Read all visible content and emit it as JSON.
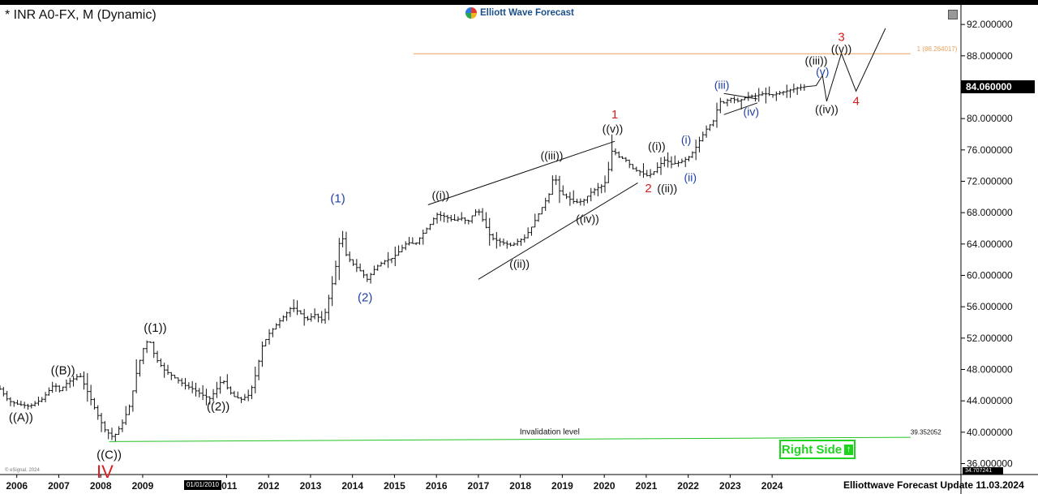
{
  "header": {
    "title": "* INR A0-FX, M (Dynamic)",
    "brand": "Elliott Wave Forecast",
    "footer": "Elliottwave Forecast Update 11.03.2024",
    "copyright": "© eSignal, 2024",
    "x_cursor_date": "01/01/2010",
    "right_side_label": "Right Side"
  },
  "colors": {
    "candle": "#111111",
    "fib_line": "#e8a25c",
    "invalidation_line": "#22c322",
    "label_black": "#111111",
    "label_blue": "#1f3fa6",
    "label_red": "#d81e1e",
    "accent_green": "#1fd41f"
  },
  "chart_data": {
    "type": "ohlc",
    "symbol": "INR A0-FX",
    "timeframe": "M",
    "x_range": [
      2005.6,
      2028.5
    ],
    "ylim": [
      34.707241,
      94.5
    ],
    "y_ticks": [
      "92.000000",
      "88.000000",
      "84.000000",
      "80.000000",
      "76.000000",
      "72.000000",
      "68.000000",
      "64.000000",
      "60.000000",
      "56.000000",
      "52.000000",
      "48.000000",
      "44.000000",
      "40.000000",
      "36.000000"
    ],
    "y_tick_values": [
      92,
      88,
      84,
      80,
      76,
      72,
      68,
      64,
      60,
      56,
      52,
      48,
      44,
      40,
      36
    ],
    "x_ticks": [
      "2006",
      "2007",
      "2008",
      "2009",
      "2011",
      "2012",
      "2013",
      "2014",
      "2015",
      "2016",
      "2017",
      "2018",
      "2019",
      "2020",
      "2021",
      "2022",
      "2023",
      "2024"
    ],
    "x_tick_values": [
      2006,
      2007,
      2008,
      2009,
      2011,
      2012,
      2013,
      2014,
      2015,
      2016,
      2017,
      2018,
      2019,
      2020,
      2021,
      2022,
      2023,
      2024
    ],
    "last_price": "84.060000",
    "low_price": "34.707241",
    "price_path": [
      [
        2005.6,
        45.5
      ],
      [
        2005.8,
        44.0
      ],
      [
        2006.0,
        43.6
      ],
      [
        2006.3,
        43.3
      ],
      [
        2006.6,
        44.2
      ],
      [
        2006.9,
        46.2
      ],
      [
        2007.0,
        45.2
      ],
      [
        2007.2,
        46.3
      ],
      [
        2007.5,
        47.3
      ],
      [
        2007.7,
        45.0
      ],
      [
        2007.9,
        42.5
      ],
      [
        2008.1,
        40.3
      ],
      [
        2008.3,
        39.3
      ],
      [
        2008.5,
        41.0
      ],
      [
        2008.7,
        43.5
      ],
      [
        2008.85,
        47.5
      ],
      [
        2009.0,
        50.5
      ],
      [
        2009.15,
        52.0
      ],
      [
        2009.3,
        49.5
      ],
      [
        2009.5,
        48.0
      ],
      [
        2009.7,
        47.2
      ],
      [
        2009.85,
        46.6
      ],
      [
        2010.0,
        46.0
      ],
      [
        2010.2,
        45.5
      ],
      [
        2010.4,
        44.8
      ],
      [
        2010.6,
        44.3
      ],
      [
        2010.75,
        45.4
      ],
      [
        2010.9,
        46.8
      ],
      [
        2011.0,
        45.8
      ],
      [
        2011.15,
        44.6
      ],
      [
        2011.35,
        44.2
      ],
      [
        2011.55,
        44.8
      ],
      [
        2011.7,
        47.5
      ],
      [
        2011.85,
        51.0
      ],
      [
        2012.0,
        52.5
      ],
      [
        2012.2,
        53.8
      ],
      [
        2012.4,
        55.0
      ],
      [
        2012.55,
        56.0
      ],
      [
        2012.75,
        55.2
      ],
      [
        2012.9,
        54.3
      ],
      [
        2013.1,
        55.0
      ],
      [
        2013.3,
        54.2
      ],
      [
        2013.5,
        58.5
      ],
      [
        2013.67,
        63.0
      ],
      [
        2013.72,
        67.0
      ],
      [
        2013.8,
        63.0
      ],
      [
        2014.0,
        61.5
      ],
      [
        2014.2,
        60.5
      ],
      [
        2014.35,
        59.5
      ],
      [
        2014.55,
        61.0
      ],
      [
        2014.75,
        61.8
      ],
      [
        2014.95,
        62.2
      ],
      [
        2015.1,
        63.0
      ],
      [
        2015.3,
        64.2
      ],
      [
        2015.5,
        64.0
      ],
      [
        2015.7,
        65.5
      ],
      [
        2015.85,
        66.5
      ],
      [
        2016.0,
        67.8
      ],
      [
        2016.2,
        67.5
      ],
      [
        2016.4,
        67.0
      ],
      [
        2016.6,
        67.3
      ],
      [
        2016.75,
        66.8
      ],
      [
        2016.9,
        68.0
      ],
      [
        2017.0,
        68.3
      ],
      [
        2017.15,
        66.5
      ],
      [
        2017.3,
        64.8
      ],
      [
        2017.55,
        64.2
      ],
      [
        2017.8,
        63.8
      ],
      [
        2017.95,
        64.4
      ],
      [
        2018.1,
        64.8
      ],
      [
        2018.25,
        66.0
      ],
      [
        2018.4,
        67.5
      ],
      [
        2018.55,
        69.0
      ],
      [
        2018.7,
        70.5
      ],
      [
        2018.8,
        73.0
      ],
      [
        2018.95,
        70.5
      ],
      [
        2019.1,
        70.0
      ],
      [
        2019.3,
        69.3
      ],
      [
        2019.5,
        69.5
      ],
      [
        2019.7,
        70.7
      ],
      [
        2019.85,
        71.2
      ],
      [
        2020.0,
        71.5
      ],
      [
        2020.15,
        74.5
      ],
      [
        2020.2,
        76.5
      ],
      [
        2020.3,
        75.2
      ],
      [
        2020.5,
        74.8
      ],
      [
        2020.7,
        73.5
      ],
      [
        2020.85,
        73.2
      ],
      [
        2021.0,
        72.7
      ],
      [
        2021.15,
        73.0
      ],
      [
        2021.3,
        74.0
      ],
      [
        2021.45,
        74.8
      ],
      [
        2021.6,
        74.2
      ],
      [
        2021.8,
        74.4
      ],
      [
        2022.0,
        75.0
      ],
      [
        2022.15,
        76.0
      ],
      [
        2022.3,
        77.5
      ],
      [
        2022.45,
        78.8
      ],
      [
        2022.6,
        79.7
      ],
      [
        2022.75,
        82.2
      ],
      [
        2022.85,
        82.0
      ],
      [
        2023.0,
        82.6
      ],
      [
        2023.2,
        82.2
      ],
      [
        2023.4,
        82.8
      ],
      [
        2023.6,
        82.9
      ],
      [
        2023.8,
        83.2
      ],
      [
        2024.0,
        83.0
      ],
      [
        2024.2,
        83.3
      ],
      [
        2024.4,
        83.6
      ],
      [
        2024.6,
        83.9
      ],
      [
        2024.8,
        84.06
      ]
    ],
    "projection_path": [
      [
        2025.05,
        84.2
      ],
      [
        2025.2,
        85.5
      ],
      [
        2025.3,
        82.2
      ],
      [
        2025.65,
        88.3
      ],
      [
        2026.0,
        83.5
      ],
      [
        2026.7,
        91.5
      ]
    ],
    "lines": [
      {
        "name": "fib-extension-line",
        "kind": "horizontal",
        "y": 88.264017,
        "x0": 2015.45,
        "x1": 2027.3,
        "color": "#e8a25c"
      },
      {
        "name": "invalidation-line",
        "kind": "segment",
        "y0": 38.8,
        "y1": 39.352052,
        "x0": 2008.2,
        "x1": 2027.3,
        "color": "#22c322"
      },
      {
        "name": "channel-upper-line",
        "kind": "segment",
        "x0": 2015.8,
        "y0": 69.0,
        "x1": 2020.25,
        "y1": 77.1,
        "color": "#111111"
      },
      {
        "name": "channel-lower-line",
        "kind": "segment",
        "x0": 2017.0,
        "y0": 59.5,
        "x1": 2020.8,
        "y1": 71.8,
        "color": "#111111"
      },
      {
        "name": "triangle-upper-line",
        "kind": "segment",
        "x0": 2022.85,
        "y0": 83.2,
        "x1": 2023.65,
        "y1": 82.5,
        "color": "#111111"
      },
      {
        "name": "triangle-lower-line",
        "kind": "segment",
        "x0": 2022.85,
        "y0": 80.5,
        "x1": 2023.65,
        "y1": 82.0,
        "color": "#111111"
      }
    ],
    "annotations": [
      {
        "text": "((A))",
        "x": 2006.1,
        "y": 41.4,
        "color": "label_black",
        "size": 15
      },
      {
        "text": "((B))",
        "x": 2007.1,
        "y": 47.4,
        "color": "label_black",
        "size": 15
      },
      {
        "text": "((C))",
        "x": 2008.2,
        "y": 36.6,
        "color": "label_black",
        "size": 15
      },
      {
        "text": "IV",
        "x": 2008.1,
        "y": 34.2,
        "color": "label_red",
        "size": 22
      },
      {
        "text": "((1))",
        "x": 2009.3,
        "y": 52.8,
        "color": "label_black",
        "size": 15
      },
      {
        "text": "((2))",
        "x": 2010.8,
        "y": 42.8,
        "color": "label_black",
        "size": 15
      },
      {
        "text": "(1)",
        "x": 2013.65,
        "y": 69.3,
        "color": "label_blue",
        "size": 15
      },
      {
        "text": "(2)",
        "x": 2014.3,
        "y": 56.7,
        "color": "label_blue",
        "size": 15
      },
      {
        "text": "((i))",
        "x": 2016.1,
        "y": 69.7,
        "color": "label_black",
        "size": 14
      },
      {
        "text": "((ii))",
        "x": 2017.98,
        "y": 61.0,
        "color": "label_black",
        "size": 14
      },
      {
        "text": "((iii))",
        "x": 2018.75,
        "y": 74.8,
        "color": "label_black",
        "size": 14
      },
      {
        "text": "((iv))",
        "x": 2019.6,
        "y": 66.7,
        "color": "label_black",
        "size": 14
      },
      {
        "text": "((v))",
        "x": 2020.2,
        "y": 78.2,
        "color": "label_black",
        "size": 14
      },
      {
        "text": "1",
        "x": 2020.25,
        "y": 80.0,
        "color": "label_red",
        "size": 15
      },
      {
        "text": "2",
        "x": 2021.05,
        "y": 70.6,
        "color": "label_red",
        "size": 15
      },
      {
        "text": "((i))",
        "x": 2021.25,
        "y": 76.0,
        "color": "label_black",
        "size": 14
      },
      {
        "text": "((ii))",
        "x": 2021.5,
        "y": 70.6,
        "color": "label_black",
        "size": 14
      },
      {
        "text": "(i)",
        "x": 2021.95,
        "y": 76.8,
        "color": "label_blue",
        "size": 14
      },
      {
        "text": "(ii)",
        "x": 2022.05,
        "y": 72.0,
        "color": "label_blue",
        "size": 14
      },
      {
        "text": "(iii)",
        "x": 2022.8,
        "y": 83.8,
        "color": "label_blue",
        "size": 14
      },
      {
        "text": "(iv)",
        "x": 2023.5,
        "y": 80.4,
        "color": "label_blue",
        "size": 14
      },
      {
        "text": "((iii))",
        "x": 2025.05,
        "y": 86.9,
        "color": "label_black",
        "size": 14
      },
      {
        "text": "(v)",
        "x": 2025.2,
        "y": 85.5,
        "color": "label_blue",
        "size": 14
      },
      {
        "text": "((iv))",
        "x": 2025.3,
        "y": 80.7,
        "color": "label_black",
        "size": 14
      },
      {
        "text": "((v))",
        "x": 2025.65,
        "y": 88.4,
        "color": "label_black",
        "size": 14
      },
      {
        "text": "3",
        "x": 2025.65,
        "y": 89.9,
        "color": "label_red",
        "size": 15
      },
      {
        "text": "4",
        "x": 2026.0,
        "y": 81.7,
        "color": "label_red",
        "size": 15
      },
      {
        "text": "Invalidation level",
        "x": 2018.7,
        "y": 39.7,
        "color": "label_black",
        "size": 10
      },
      {
        "text": "39.352052",
        "x": 2027.3,
        "y": 39.7,
        "color": "label_black",
        "size": 8
      },
      {
        "text": "1 (88.264017)",
        "x": 2027.45,
        "y": 88.6,
        "color": "fib_line",
        "size": 8
      }
    ]
  }
}
